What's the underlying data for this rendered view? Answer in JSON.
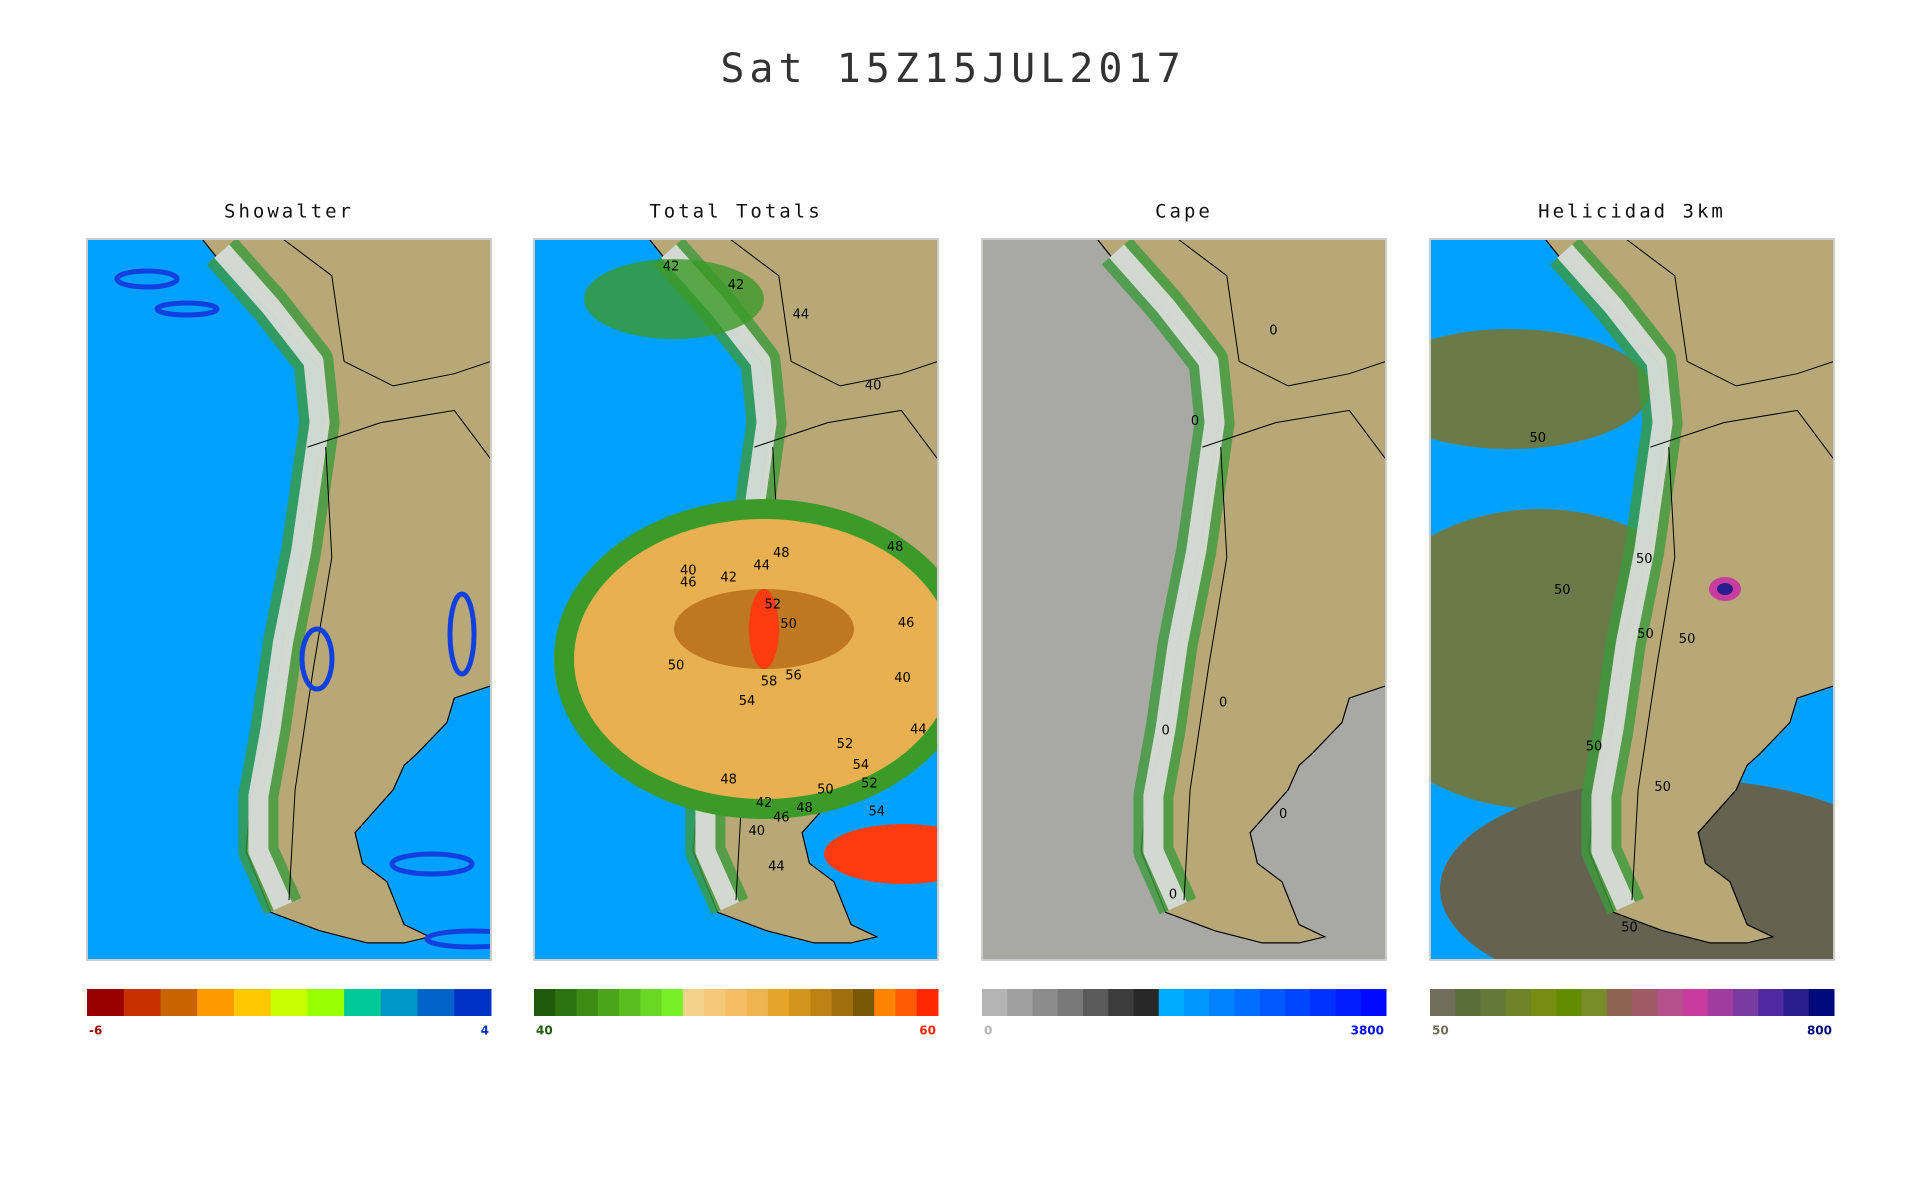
{
  "header": {
    "title": "Sat 15Z15JUL2017"
  },
  "panels": [
    {
      "title": "Showalter",
      "colorbar": {
        "min": -6,
        "max": 4,
        "colors": [
          "#990000",
          "#c83000",
          "#c86400",
          "#ff9900",
          "#ffc800",
          "#c8ff00",
          "#96ff00",
          "#00c896",
          "#0096c8",
          "#0064c8",
          "#0032c8"
        ]
      },
      "contour_labels": []
    },
    {
      "title": "Total  Totals",
      "colorbar": {
        "min": 40,
        "max": 60,
        "colors": [
          "#1e5a0a",
          "#2d7310",
          "#3c8c14",
          "#4ba51a",
          "#5abe1e",
          "#69d723",
          "#78f028",
          "#f5d28c",
          "#f5c878",
          "#f5be64",
          "#f0b450",
          "#e6a528",
          "#d2961e",
          "#be8214",
          "#a06e0a",
          "#785a05",
          "#ff8200",
          "#ff5a00",
          "#ff2800"
        ]
      },
      "contour_labels": [
        42,
        42,
        44,
        40,
        48,
        40,
        46,
        42,
        44,
        48,
        52,
        50,
        46,
        50,
        58,
        56,
        40,
        54,
        44,
        52,
        54,
        52,
        48,
        50,
        42,
        48,
        46,
        54,
        40,
        44
      ]
    },
    {
      "title": "Cape",
      "colorbar": {
        "min": 0,
        "max": 3800,
        "colors": [
          "#b4b4b4",
          "#a0a0a0",
          "#8c8c8c",
          "#787878",
          "#5a5a5a",
          "#3c3c3c",
          "#282828",
          "#00aaff",
          "#0096ff",
          "#0082ff",
          "#006eff",
          "#005aff",
          "#0046ff",
          "#0032ff",
          "#001eff",
          "#000aff"
        ]
      },
      "contour_labels": [
        0,
        0,
        0,
        0,
        0,
        0
      ]
    },
    {
      "title": "Helicidad 3km",
      "colorbar": {
        "min": 50,
        "max": 800,
        "colors": [
          "#6e6e5a",
          "#5a6e3c",
          "#64783c",
          "#6e8228",
          "#788c14",
          "#648c00",
          "#788c28",
          "#8c6450",
          "#a05a64",
          "#b4508c",
          "#c83ca0",
          "#a03ca0",
          "#783ca0",
          "#5028a0",
          "#281e8c",
          "#000a78"
        ]
      },
      "contour_labels": [
        50,
        50,
        50,
        50,
        50,
        50,
        50,
        50
      ]
    }
  ]
}
